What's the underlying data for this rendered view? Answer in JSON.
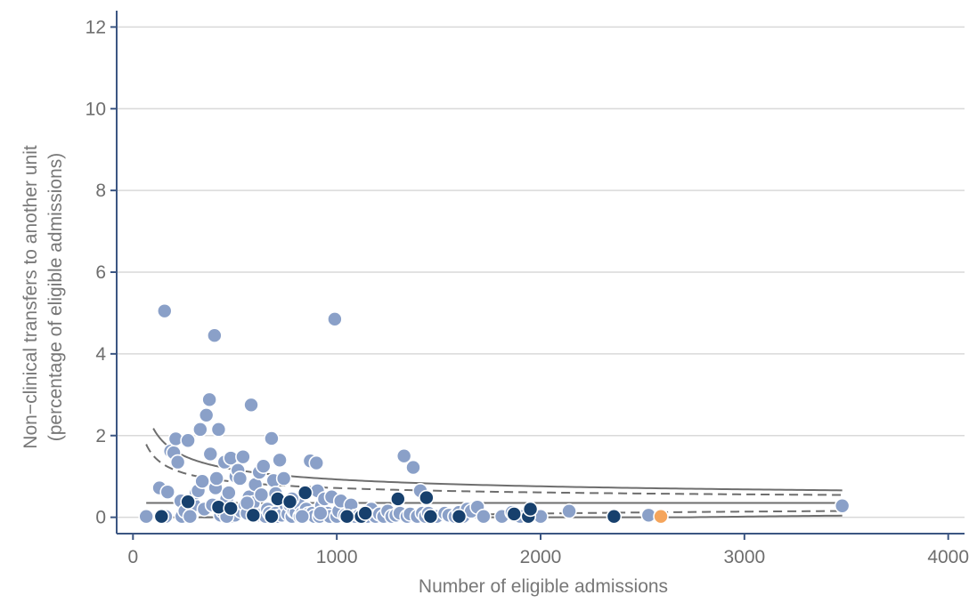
{
  "colors": {
    "axis": "#3c5682",
    "grid": "#d9d9d9",
    "limit_line": "#6e6e6e",
    "point_light": "#8aa0c8",
    "point_dark": "#17406d",
    "point_highlight": "#f5a55c",
    "tick_text": "#6e6e6e",
    "title_text": "#777777"
  },
  "chart_data": {
    "type": "scatter",
    "title": "",
    "xlabel": "Number of eligible admissions",
    "ylabel_line1": "Non−clinical transfers to another unit",
    "ylabel_line2": "(percentage of eligible admissions)",
    "xlim": [
      -80,
      4080
    ],
    "ylim": [
      -0.4,
      12.4
    ],
    "x_ticks": [
      0,
      1000,
      2000,
      3000,
      4000
    ],
    "x_tick_labels": [
      "0",
      "1000",
      "2000",
      "3000",
      "4000"
    ],
    "y_ticks": [
      0,
      2,
      4,
      6,
      8,
      10,
      12
    ],
    "y_tick_labels": [
      "0",
      "2",
      "4",
      "6",
      "8",
      "10",
      "12"
    ],
    "grid": "horizontal",
    "reference_lines": {
      "mean_pct": 0.35,
      "outer_limit_z": 3.09,
      "inner_limit_z": 1.96,
      "x_start": 100,
      "x_start_inner": 65,
      "x_end": 3480
    },
    "series": [
      {
        "group": "light",
        "points": [
          [
            65,
            0.02
          ],
          [
            130,
            0.72
          ],
          [
            155,
            5.05
          ],
          [
            170,
            0.62
          ],
          [
            185,
            1.62
          ],
          [
            200,
            1.58
          ],
          [
            210,
            1.92
          ],
          [
            220,
            1.35
          ],
          [
            235,
            0.4
          ],
          [
            240,
            0.02
          ],
          [
            255,
            0.15
          ],
          [
            270,
            1.88
          ],
          [
            285,
            0.05
          ],
          [
            300,
            0.3
          ],
          [
            310,
            0.6
          ],
          [
            320,
            0.65
          ],
          [
            330,
            2.15
          ],
          [
            340,
            0.88
          ],
          [
            350,
            0.2
          ],
          [
            360,
            2.5
          ],
          [
            375,
            2.88
          ],
          [
            380,
            1.55
          ],
          [
            390,
            0.3
          ],
          [
            400,
            4.45
          ],
          [
            405,
            0.72
          ],
          [
            410,
            0.95
          ],
          [
            420,
            2.15
          ],
          [
            430,
            0.05
          ],
          [
            440,
            0.15
          ],
          [
            450,
            1.35
          ],
          [
            460,
            0.45
          ],
          [
            470,
            0.6
          ],
          [
            480,
            1.45
          ],
          [
            490,
            0.02
          ],
          [
            500,
            0.05
          ],
          [
            505,
            1.0
          ],
          [
            515,
            1.15
          ],
          [
            525,
            0.95
          ],
          [
            530,
            0.15
          ],
          [
            540,
            1.48
          ],
          [
            550,
            0.3
          ],
          [
            560,
            0.1
          ],
          [
            570,
            0.5
          ],
          [
            580,
            2.75
          ],
          [
            590,
            0.35
          ],
          [
            600,
            0.8
          ],
          [
            610,
            0.05
          ],
          [
            620,
            1.1
          ],
          [
            630,
            0.55
          ],
          [
            640,
            1.25
          ],
          [
            650,
            0.02
          ],
          [
            660,
            0.2
          ],
          [
            670,
            0.1
          ],
          [
            680,
            1.93
          ],
          [
            690,
            0.9
          ],
          [
            700,
            0.1
          ],
          [
            710,
            0.02
          ],
          [
            720,
            1.4
          ],
          [
            730,
            0.05
          ],
          [
            740,
            0.95
          ],
          [
            750,
            0.3
          ],
          [
            760,
            0.08
          ],
          [
            770,
            0.3
          ],
          [
            780,
            0.02
          ],
          [
            790,
            0.15
          ],
          [
            800,
            0.12
          ],
          [
            810,
            0.35
          ],
          [
            820,
            0.02
          ],
          [
            830,
            0.1
          ],
          [
            840,
            0.02
          ],
          [
            850,
            0.2
          ],
          [
            860,
            0.08
          ],
          [
            870,
            1.38
          ],
          [
            880,
            0.1
          ],
          [
            890,
            0.02
          ],
          [
            900,
            1.33
          ],
          [
            905,
            0.65
          ],
          [
            915,
            0.02
          ],
          [
            925,
            0.28
          ],
          [
            940,
            0.45
          ],
          [
            955,
            0.1
          ],
          [
            965,
            0.02
          ],
          [
            975,
            0.5
          ],
          [
            990,
            4.85
          ],
          [
            1000,
            0.02
          ],
          [
            1010,
            0.15
          ],
          [
            1020,
            0.4
          ],
          [
            1040,
            0.05
          ],
          [
            1055,
            0.02
          ],
          [
            1070,
            0.3
          ],
          [
            1090,
            0.02
          ],
          [
            1110,
            0.05
          ],
          [
            1130,
            0.1
          ],
          [
            1150,
            0.02
          ],
          [
            1170,
            0.2
          ],
          [
            1190,
            0.02
          ],
          [
            1210,
            0.08
          ],
          [
            1230,
            0.02
          ],
          [
            1250,
            0.15
          ],
          [
            1270,
            0.02
          ],
          [
            1290,
            0.05
          ],
          [
            1310,
            0.1
          ],
          [
            1330,
            1.5
          ],
          [
            1345,
            0.02
          ],
          [
            1360,
            0.08
          ],
          [
            1375,
            1.22
          ],
          [
            1395,
            0.02
          ],
          [
            1410,
            0.65
          ],
          [
            1420,
            0.1
          ],
          [
            1435,
            0.02
          ],
          [
            1450,
            0.1
          ],
          [
            1490,
            0.02
          ],
          [
            1530,
            0.1
          ],
          [
            1550,
            0.05
          ],
          [
            1580,
            0.02
          ],
          [
            1600,
            0.12
          ],
          [
            1620,
            0.02
          ],
          [
            1640,
            0.2
          ],
          [
            1660,
            0.15
          ],
          [
            1690,
            0.25
          ],
          [
            1720,
            0.02
          ],
          [
            1810,
            0.02
          ],
          [
            1860,
            0.12
          ],
          [
            1900,
            0.02
          ],
          [
            1950,
            0.02
          ],
          [
            2000,
            0.02
          ],
          [
            2140,
            0.15
          ],
          [
            2530,
            0.05
          ],
          [
            3480,
            0.28
          ],
          [
            160,
            0.02
          ],
          [
            280,
            0.02
          ],
          [
            460,
            0.02
          ],
          [
            560,
            0.35
          ],
          [
            700,
            0.58
          ],
          [
            780,
            0.45
          ],
          [
            830,
            0.02
          ],
          [
            920,
            0.1
          ]
        ]
      },
      {
        "group": "dark",
        "points": [
          [
            140,
            0.02
          ],
          [
            270,
            0.38
          ],
          [
            420,
            0.25
          ],
          [
            480,
            0.22
          ],
          [
            590,
            0.05
          ],
          [
            680,
            0.02
          ],
          [
            710,
            0.45
          ],
          [
            770,
            0.38
          ],
          [
            845,
            0.6
          ],
          [
            1050,
            0.02
          ],
          [
            1120,
            0.02
          ],
          [
            1140,
            0.1
          ],
          [
            1300,
            0.45
          ],
          [
            1440,
            0.48
          ],
          [
            1460,
            0.02
          ],
          [
            1600,
            0.02
          ],
          [
            1870,
            0.08
          ],
          [
            1940,
            0.02
          ],
          [
            1950,
            0.2
          ],
          [
            2360,
            0.02
          ]
        ]
      },
      {
        "group": "highlight",
        "points": [
          [
            2590,
            0.02
          ]
        ]
      }
    ]
  }
}
